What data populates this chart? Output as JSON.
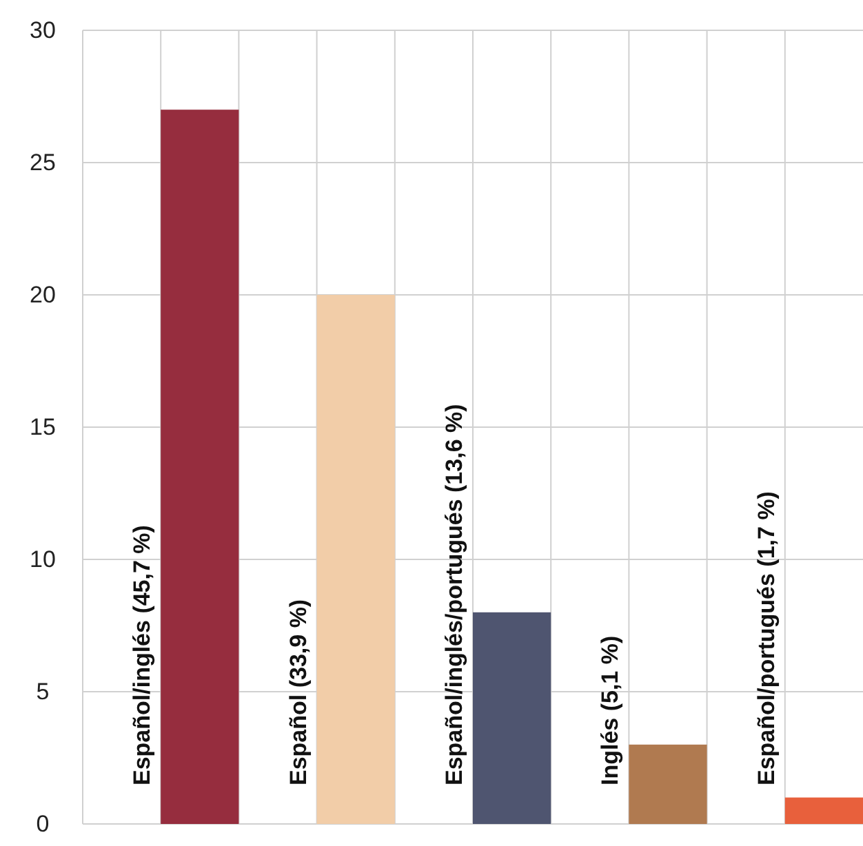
{
  "chart_data": {
    "type": "bar",
    "categories": [
      "Español/inglés (45,7 %)",
      "Español (33,9 %)",
      "Español/inglés/portugués (13,6 %)",
      "Inglés (5,1 %)",
      "Español/portugués (1,7 %)"
    ],
    "values": [
      27,
      20,
      8,
      3,
      1
    ],
    "colors": [
      "#962d3e",
      "#f2cda8",
      "#4f5570",
      "#b07a50",
      "#e8603c"
    ],
    "ylim": [
      0,
      30
    ],
    "yticks": [
      0,
      5,
      10,
      15,
      20,
      25,
      30
    ],
    "grid": true
  }
}
